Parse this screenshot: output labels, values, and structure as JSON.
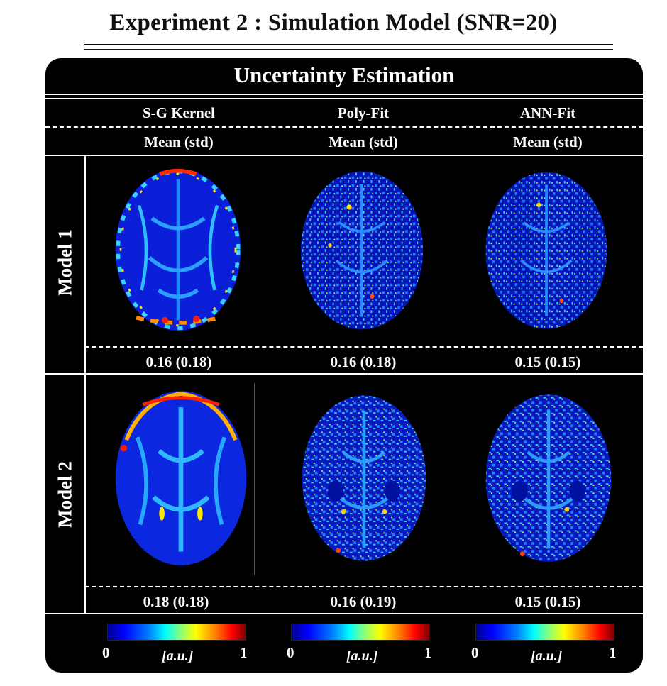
{
  "title": "Experiment 2 : Simulation Model (SNR=20)",
  "panel_title": "Uncertainty Estimation",
  "columns": [
    {
      "method": "S-G Kernel",
      "stat_label": "Mean (std)"
    },
    {
      "method": "Poly-Fit",
      "stat_label": "Mean (std)"
    },
    {
      "method": "ANN-Fit",
      "stat_label": "Mean (std)"
    }
  ],
  "rows": [
    {
      "label": "Model 1",
      "values": [
        "0.16 (0.18)",
        "0.16 (0.18)",
        "0.15 (0.15)"
      ]
    },
    {
      "label": "Model 2",
      "values": [
        "0.18 (0.18)",
        "0.16 (0.19)",
        "0.15 (0.15)"
      ]
    }
  ],
  "colorbar": {
    "min": "0",
    "max": "1",
    "unit_open": "[",
    "unit": "a.u.",
    "unit_close": "]",
    "colormap": "jet"
  },
  "colors": {
    "background": "#000000",
    "brain_base": "#0a1ad0",
    "text": "#ffffff"
  }
}
